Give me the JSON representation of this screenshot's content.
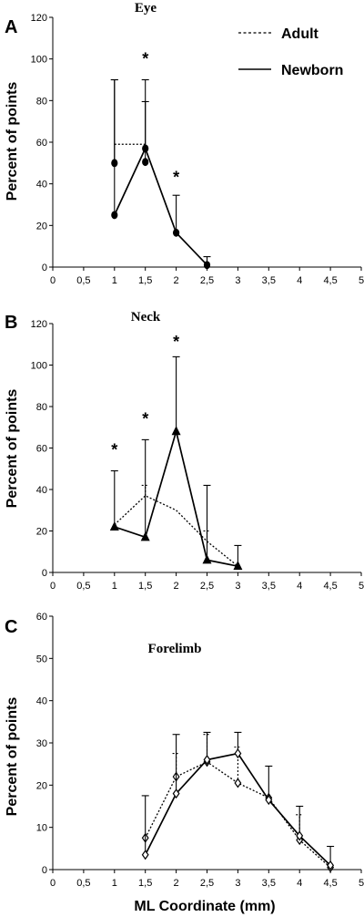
{
  "legend": {
    "adult": "Adult",
    "newborn": "Newborn"
  },
  "x_axis_label": "ML Coordinate (mm)",
  "chart_data": [
    {
      "panel_letter": "A",
      "type": "line",
      "title": "Eye",
      "ylabel": "Percent of points",
      "ylim": [
        0,
        120
      ],
      "yticks": [
        0,
        20,
        40,
        60,
        80,
        100,
        120
      ],
      "xlim": [
        0,
        5
      ],
      "xtick_labels": [
        "0",
        "0,5",
        "1",
        "1,5",
        "2",
        "2,5",
        "3",
        "3,5",
        "4",
        "4,5",
        "5"
      ],
      "grid": false,
      "legend_position": "top-right",
      "marker": "filled-circle",
      "series": [
        {
          "name": "Adult",
          "style": "dotted",
          "points": [
            [
              1,
              59
            ],
            [
              1.5,
              59
            ]
          ],
          "errors": [
            null,
            null
          ]
        },
        {
          "name": "Newborn",
          "style": "solid",
          "points": [
            [
              1,
              25
            ],
            [
              1.5,
              57
            ],
            [
              2,
              16.5
            ],
            [
              2.5,
              1
            ]
          ],
          "errors": [
            65,
            33,
            18,
            4
          ]
        },
        {
          "name": "",
          "style": "markers",
          "points": [
            [
              1,
              50
            ],
            [
              1.5,
              50.5
            ]
          ],
          "errors": [
            40,
            29
          ]
        }
      ],
      "annotations": [
        {
          "text": "*",
          "x": 1.5,
          "y": 101
        },
        {
          "text": "*",
          "x": 2,
          "y": 44
        }
      ]
    },
    {
      "panel_letter": "B",
      "type": "line",
      "title": "Neck",
      "ylabel": "Percent of points",
      "ylim": [
        0,
        120
      ],
      "yticks": [
        0,
        20,
        40,
        60,
        80,
        100,
        120
      ],
      "xlim": [
        0,
        5
      ],
      "xtick_labels": [
        "0",
        "0,5",
        "1",
        "1,5",
        "2",
        "2,5",
        "3",
        "3,5",
        "4",
        "4,5",
        "5"
      ],
      "grid": false,
      "marker": "filled-triangle",
      "series": [
        {
          "name": "Adult",
          "style": "dotted",
          "points": [
            [
              1,
              23
            ],
            [
              1.5,
              37
            ],
            [
              2,
              30
            ],
            [
              2.5,
              15
            ],
            [
              3,
              3
            ]
          ],
          "errors": [
            null,
            5,
            null,
            5,
            null
          ]
        },
        {
          "name": "Newborn",
          "style": "solid",
          "points": [
            [
              1,
              22
            ],
            [
              1.5,
              17
            ],
            [
              2,
              68
            ],
            [
              2.5,
              6
            ],
            [
              3,
              3
            ]
          ],
          "errors": [
            27,
            47,
            36,
            36,
            10
          ]
        }
      ],
      "annotations": [
        {
          "text": "*",
          "x": 1,
          "y": 60
        },
        {
          "text": "*",
          "x": 1.5,
          "y": 75
        },
        {
          "text": "*",
          "x": 2,
          "y": 112
        }
      ]
    },
    {
      "panel_letter": "C",
      "type": "line",
      "title": "Forelimb",
      "ylabel": "Percent of points",
      "ylim": [
        0,
        60
      ],
      "yticks": [
        0,
        10,
        20,
        30,
        40,
        50,
        60
      ],
      "xlim": [
        0,
        5
      ],
      "xtick_labels": [
        "0",
        "0,5",
        "1",
        "1,5",
        "2",
        "2,5",
        "3",
        "3,5",
        "4",
        "4,5",
        "5"
      ],
      "grid": false,
      "marker": "open-diamond",
      "series": [
        {
          "name": "Adult",
          "style": "dotted",
          "points": [
            [
              1.5,
              7.5
            ],
            [
              2,
              22
            ],
            [
              2.5,
              25.5
            ],
            [
              3,
              20.5
            ],
            [
              3.5,
              17
            ],
            [
              4,
              7
            ],
            [
              4.5,
              0.5
            ]
          ],
          "errors": [
            null,
            5.5,
            6.5,
            8.5,
            null,
            6,
            null
          ]
        },
        {
          "name": "Newborn",
          "style": "solid",
          "points": [
            [
              1.5,
              3.5
            ],
            [
              2,
              18
            ],
            [
              2.5,
              26
            ],
            [
              3,
              27.5
            ],
            [
              3.5,
              16.5
            ],
            [
              4,
              8
            ],
            [
              4.5,
              1
            ]
          ],
          "errors": [
            14,
            14,
            6.5,
            5,
            8,
            7,
            4.5
          ]
        }
      ],
      "annotations": []
    }
  ]
}
